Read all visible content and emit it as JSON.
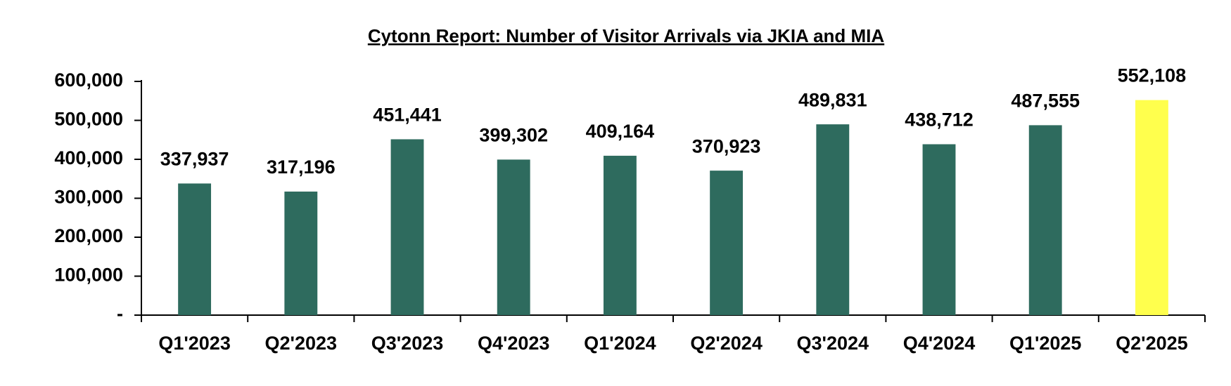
{
  "chart_data": {
    "type": "bar",
    "title": "Cytonn Report: Number of Visitor Arrivals via JKIA and MIA",
    "categories": [
      "Q1'2023",
      "Q2'2023",
      "Q3'2023",
      "Q4'2023",
      "Q1'2024",
      "Q2'2024",
      "Q3'2024",
      "Q4'2024",
      "Q1'2025",
      "Q2'2025"
    ],
    "values": [
      337937,
      317196,
      451441,
      399302,
      409164,
      370923,
      489831,
      438712,
      487555,
      552108
    ],
    "value_labels": [
      "337,937",
      "317,196",
      "451,441",
      "399,302",
      "409,164",
      "370,923",
      "489,831",
      "438,712",
      "487,555",
      "552,108"
    ],
    "colors": [
      "#2e6b5e",
      "#2e6b5e",
      "#2e6b5e",
      "#2e6b5e",
      "#2e6b5e",
      "#2e6b5e",
      "#2e6b5e",
      "#2e6b5e",
      "#2e6b5e",
      "#ffff4d"
    ],
    "ylim": [
      0,
      600000
    ],
    "yticks": [
      {
        "value": 0,
        "label": "-"
      },
      {
        "value": 100000,
        "label": "100,000"
      },
      {
        "value": 200000,
        "label": "200,000"
      },
      {
        "value": 300000,
        "label": "300,000"
      },
      {
        "value": 400000,
        "label": "400,000"
      },
      {
        "value": 500000,
        "label": "500,000"
      },
      {
        "value": 600000,
        "label": "600,000"
      }
    ],
    "grid": false
  }
}
